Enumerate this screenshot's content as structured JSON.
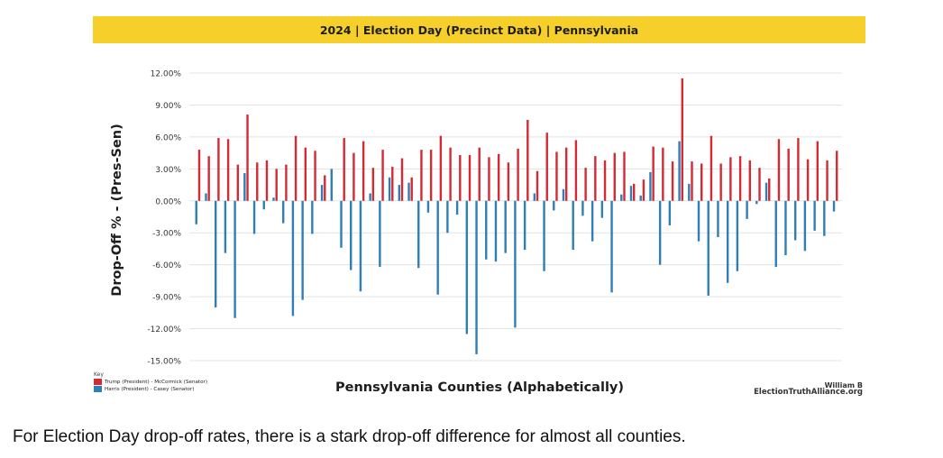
{
  "banner": {
    "title": "2024 | Election Day (Precinct Data) | Pennsylvania"
  },
  "caption": "For Election Day drop-off rates, there is a stark drop-off difference for almost all counties.",
  "key": {
    "title": "Key",
    "items": [
      {
        "label": "Trump (President) - McCormick (Senator)",
        "color": "#d42a33"
      },
      {
        "label": "Harris (President) - Casey (Senator)",
        "color": "#2e7eb8"
      }
    ]
  },
  "credit": {
    "author": "William B",
    "site": "ElectionTruthAlliance.org"
  },
  "chart_data": {
    "type": "bar",
    "title": "2024 | Election Day (Precinct Data) | Pennsylvania",
    "xlabel": "Pennsylvania Counties (Alphabetically)",
    "ylabel": "Drop-Off % - (Pres-Sen)",
    "ylim": [
      -15,
      12
    ],
    "yticks": [
      "-15.00%",
      "-12.00%",
      "-9.00%",
      "-6.00%",
      "-3.00%",
      "0.00%",
      "3.00%",
      "6.00%",
      "9.00%",
      "12.00%"
    ],
    "ytick_values": [
      -15,
      -12,
      -9,
      -6,
      -3,
      0,
      3,
      6,
      9,
      12
    ],
    "grid": true,
    "legend": "bottom-left",
    "n_counties": 67,
    "series": [
      {
        "name": "Trump (President) - McCormick (Senator)",
        "color": "#d42a33",
        "values": [
          4.8,
          4.2,
          5.9,
          5.8,
          3.4,
          8.1,
          3.6,
          3.8,
          3.0,
          3.4,
          6.1,
          5.0,
          4.7,
          2.4,
          0,
          5.9,
          4.5,
          5.6,
          3.1,
          4.8,
          3.2,
          4.0,
          2.2,
          4.8,
          4.8,
          6.1,
          5.0,
          4.3,
          4.3,
          5.0,
          4.1,
          4.4,
          3.6,
          4.9,
          7.6,
          2.8,
          6.4,
          4.6,
          5.0,
          5.7,
          3.1,
          4.2,
          3.8,
          4.5,
          4.6,
          1.6,
          2.0,
          5.1,
          5.0,
          3.7,
          11.5,
          3.7,
          3.5,
          6.1,
          3.5,
          4.1,
          4.2,
          3.8,
          3.1,
          2.1,
          5.8,
          4.9,
          5.9,
          3.9,
          5.6,
          3.8,
          4.7
        ]
      },
      {
        "name": "Harris (President) - Casey (Senator)",
        "color": "#2e7eb8",
        "values": [
          -2.2,
          0.7,
          -10.0,
          -4.9,
          -11.0,
          2.6,
          -3.1,
          -0.8,
          0.3,
          -2.1,
          -10.8,
          -9.3,
          -3.1,
          1.5,
          3.0,
          -4.4,
          -6.5,
          -8.5,
          0.7,
          -6.2,
          2.2,
          1.5,
          1.7,
          -6.3,
          -1.1,
          -8.8,
          -3.0,
          -1.3,
          -12.5,
          -14.4,
          -5.5,
          -5.7,
          -4.9,
          -11.9,
          -4.6,
          0.7,
          -6.6,
          -0.9,
          1.1,
          -4.6,
          -1.4,
          -3.8,
          -1.6,
          -8.6,
          0.6,
          1.4,
          0.5,
          2.7,
          -6.0,
          -2.3,
          5.6,
          1.6,
          -3.8,
          -8.9,
          -3.4,
          -7.7,
          -6.6,
          -1.7,
          -0.3,
          1.7,
          -6.2,
          -5.1,
          -3.7,
          -4.7,
          -2.8,
          -3.3,
          -1.0
        ]
      }
    ]
  }
}
